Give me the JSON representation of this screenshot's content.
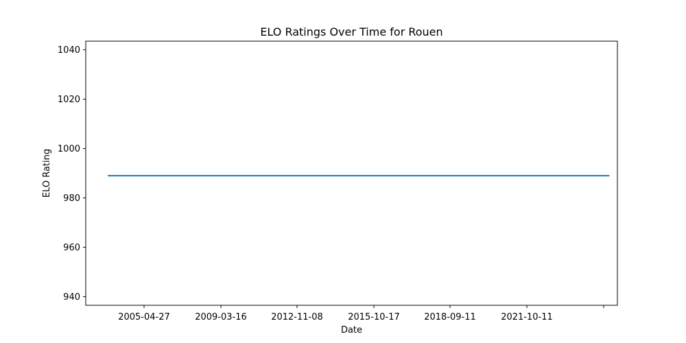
{
  "chart_data": {
    "type": "line",
    "title": "ELO Ratings Over Time for Rouen",
    "xlabel": "Date",
    "ylabel": "ELO Rating",
    "x_ticks": [
      "2005-04-27",
      "2009-03-16",
      "2012-11-08",
      "2015-10-17",
      "2018-09-11",
      "2021-10-11",
      ""
    ],
    "y_ticks": [
      940,
      960,
      980,
      1000,
      1020,
      1040
    ],
    "ylim": [
      936.5,
      1043.5
    ],
    "xlim": [
      "2001-08-20",
      "2027-09-02"
    ],
    "grid": false,
    "legend": "none",
    "series": [
      {
        "color": "#1f77b4",
        "points": [
          {
            "x": "2002-10-01",
            "y": 989
          },
          {
            "x": "2027-04-01",
            "y": 989
          }
        ]
      }
    ]
  }
}
